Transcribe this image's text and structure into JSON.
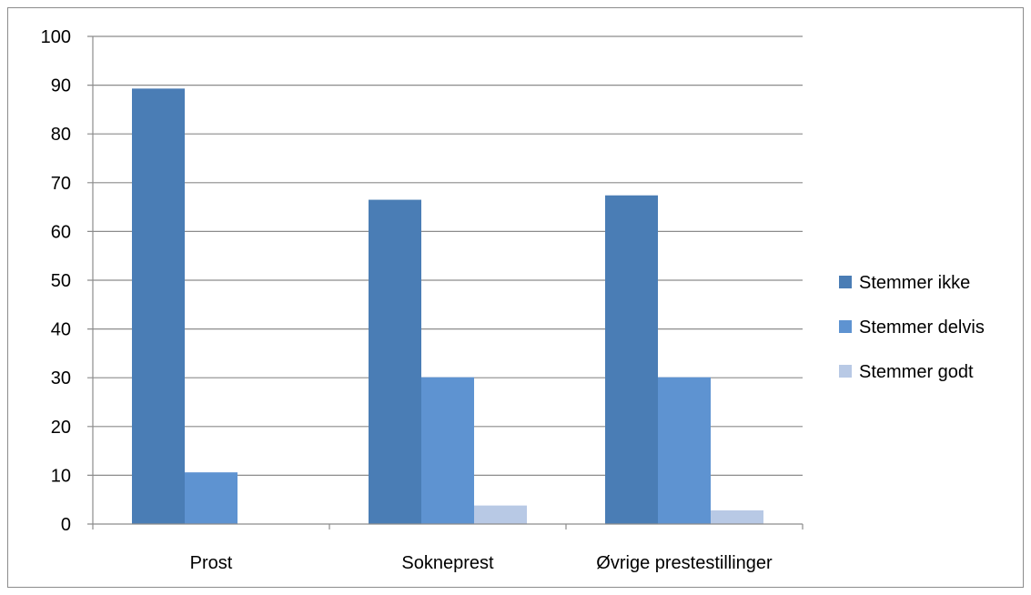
{
  "chart_data": {
    "type": "bar",
    "title": "",
    "xlabel": "",
    "ylabel": "",
    "categories": [
      "Prost",
      "Sokneprest",
      "Øvrige prestestillinger"
    ],
    "series": [
      {
        "name": "Stemmer ikke",
        "values": [
          89.3,
          66.5,
          67.4
        ],
        "color": "#4A7DB5"
      },
      {
        "name": "Stemmer delvis",
        "values": [
          10.6,
          30.1,
          30.1
        ],
        "color": "#5E93D1"
      },
      {
        "name": "Stemmer godt",
        "values": [
          0,
          3.8,
          2.8
        ],
        "color": "#B8C9E5"
      }
    ],
    "ylim": [
      0,
      100
    ],
    "yticks": [
      0,
      10,
      20,
      30,
      40,
      50,
      60,
      70,
      80,
      90,
      100
    ],
    "grid": true,
    "legend_position": "right"
  }
}
